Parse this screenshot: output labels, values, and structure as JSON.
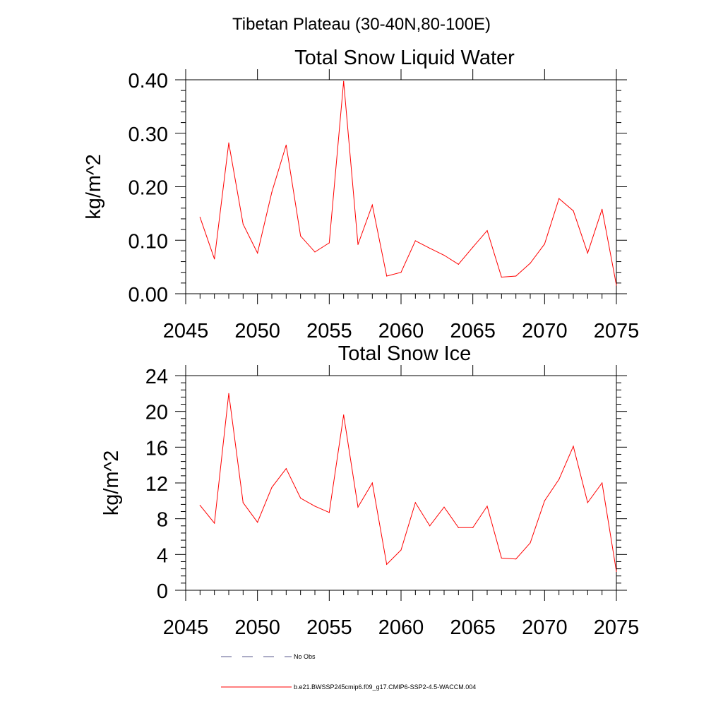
{
  "figure": {
    "title": "Tibetan Plateau (30-40N,80-100E)"
  },
  "colors": {
    "model_line": "#ff0000",
    "obs_line": "#5a5a8c",
    "axis": "#000000"
  },
  "legend": [
    {
      "label": "No Obs",
      "style": "dashed",
      "color": "#5a5a8c"
    },
    {
      "label": "b.e21.BWSSP245cmip6.f09_g17.CMIP6-SSP2-4.5-WACCM.004",
      "style": "solid",
      "color": "#ff0000"
    }
  ],
  "chart_data": [
    {
      "type": "line",
      "title": "Total Snow Liquid Water",
      "xlabel": "",
      "ylabel": "kg/m^2",
      "xlim": [
        2045,
        2075
      ],
      "ylim": [
        0,
        0.4
      ],
      "xticks": [
        2045,
        2050,
        2055,
        2060,
        2065,
        2070,
        2075
      ],
      "xtick_labels": [
        "2045",
        "2050",
        "2055",
        "2060",
        "2065",
        "2070",
        "2075"
      ],
      "yticks": [
        0,
        0.1,
        0.2,
        0.3,
        0.4
      ],
      "ytick_labels": [
        "0.00",
        "0.10",
        "0.20",
        "0.30",
        "0.40"
      ],
      "grid": false,
      "x": [
        2046,
        2047,
        2048,
        2049,
        2050,
        2051,
        2052,
        2053,
        2054,
        2055,
        2056,
        2057,
        2058,
        2059,
        2060,
        2061,
        2062,
        2063,
        2064,
        2065,
        2066,
        2067,
        2068,
        2069,
        2070,
        2071,
        2072,
        2073,
        2074,
        2075
      ],
      "series": [
        {
          "name": "b.e21.BWSSP245cmip6.f09_g17.CMIP6-SSP2-4.5-WACCM.004",
          "values": [
            0.143,
            0.065,
            0.282,
            0.13,
            0.076,
            0.19,
            0.278,
            0.108,
            0.078,
            0.095,
            0.397,
            0.092,
            0.166,
            0.033,
            0.04,
            0.099,
            0.085,
            0.072,
            0.055,
            0.087,
            0.118,
            0.031,
            0.033,
            0.057,
            0.093,
            0.178,
            0.155,
            0.076,
            0.158,
            0.016
          ]
        }
      ]
    },
    {
      "type": "line",
      "title": "Total Snow Ice",
      "xlabel": "",
      "ylabel": "kg/m^2",
      "xlim": [
        2045,
        2075
      ],
      "ylim": [
        0,
        24
      ],
      "xticks": [
        2045,
        2050,
        2055,
        2060,
        2065,
        2070,
        2075
      ],
      "xtick_labels": [
        "2045",
        "2050",
        "2055",
        "2060",
        "2065",
        "2070",
        "2075"
      ],
      "yticks": [
        0,
        4,
        8,
        12,
        16,
        20,
        24
      ],
      "ytick_labels": [
        "0",
        "4",
        "8",
        "12",
        "16",
        "20",
        "24"
      ],
      "grid": false,
      "x": [
        2046,
        2047,
        2048,
        2049,
        2050,
        2051,
        2052,
        2053,
        2054,
        2055,
        2056,
        2057,
        2058,
        2059,
        2060,
        2061,
        2062,
        2063,
        2064,
        2065,
        2066,
        2067,
        2068,
        2069,
        2070,
        2071,
        2072,
        2073,
        2074,
        2075
      ],
      "series": [
        {
          "name": "b.e21.BWSSP245cmip6.f09_g17.CMIP6-SSP2-4.5-WACCM.004",
          "values": [
            9.5,
            7.5,
            22.0,
            9.8,
            7.6,
            11.5,
            13.6,
            10.3,
            9.4,
            8.7,
            19.6,
            9.3,
            12.0,
            2.9,
            4.5,
            9.8,
            7.2,
            9.3,
            7.0,
            7.0,
            9.4,
            3.6,
            3.5,
            5.3,
            10.0,
            12.4,
            16.1,
            9.8,
            12.0,
            2.1
          ]
        }
      ]
    }
  ]
}
